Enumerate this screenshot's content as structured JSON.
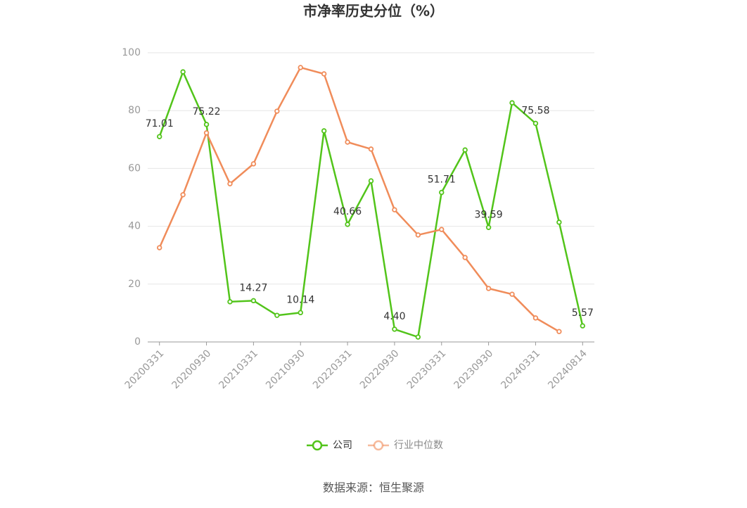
{
  "chart_data": {
    "type": "line",
    "title": "市净率历史分位（%）",
    "categories": [
      "20200331",
      null,
      "20200930",
      null,
      "20210331",
      null,
      "20210930",
      null,
      "20220331",
      null,
      "20220930",
      null,
      "20230331",
      null,
      "20230930",
      null,
      "20240331",
      null,
      "20240814"
    ],
    "series": [
      {
        "name": "公司",
        "color": "#52c41a",
        "values": [
          71.01,
          93.4,
          75.22,
          13.9,
          14.27,
          9.2,
          10.14,
          73.0,
          40.66,
          55.7,
          4.4,
          1.7,
          51.71,
          66.4,
          39.59,
          82.7,
          75.58,
          41.4,
          5.57
        ],
        "value_labels": [
          "71.01",
          null,
          "75.22",
          null,
          "14.27",
          null,
          "10.14",
          null,
          "40.66",
          null,
          "4.40",
          null,
          "51.71",
          null,
          "39.59",
          null,
          "75.58",
          null,
          "5.57"
        ]
      },
      {
        "name": "行业中位数",
        "color": "#f08c5a",
        "values": [
          32.6,
          50.9,
          72.3,
          54.7,
          61.6,
          79.8,
          94.9,
          92.7,
          69.1,
          66.7,
          45.7,
          37.0,
          38.9,
          29.2,
          18.5,
          16.5,
          8.3,
          3.6,
          null
        ]
      }
    ],
    "ylim": [
      0,
      100
    ],
    "yticks": [
      0,
      20,
      40,
      60,
      80,
      100
    ],
    "grid": true,
    "legend": "bottom",
    "source": "数据来源：恒生聚源"
  }
}
